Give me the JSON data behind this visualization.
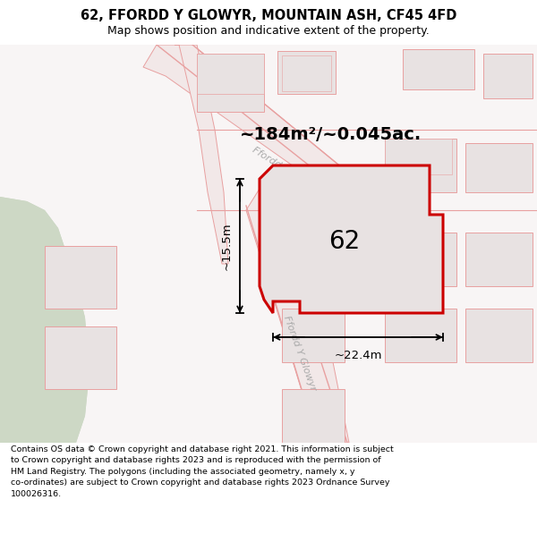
{
  "title": "62, FFORDD Y GLOWYR, MOUNTAIN ASH, CF45 4FD",
  "subtitle": "Map shows position and indicative extent of the property.",
  "footer": "Contains OS data © Crown copyright and database right 2021. This information is subject\nto Crown copyright and database rights 2023 and is reproduced with the permission of\nHM Land Registry. The polygons (including the associated geometry, namely x, y\nco-ordinates) are subject to Crown copyright and database rights 2023 Ordnance Survey\n100026316.",
  "area_label": "~184m²/~0.045ac.",
  "width_label": "~22.4m",
  "height_label": "~15.5m",
  "property_number": "62",
  "map_bg": "#f7f3f3",
  "road_line_color": "#e8a0a0",
  "road_fill_color": "#f2e8e8",
  "property_fill": "#e8e2e2",
  "property_border": "#cc0000",
  "green_color": "#cdd8c5",
  "building_fill": "#e8e2e2",
  "building_edge": "#e8a0a0",
  "road_gray_color": "#bbbbbb",
  "text_color": "#555555"
}
